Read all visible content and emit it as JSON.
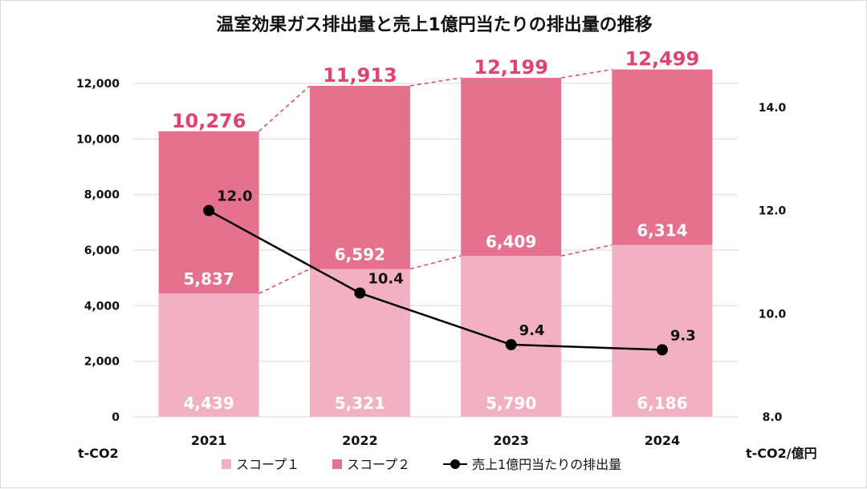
{
  "chart_data": {
    "type": "bar",
    "title": "温室効果ガス排出量と売上1億円当たりの排出量の推移",
    "categories": [
      "2021",
      "2022",
      "2023",
      "2024"
    ],
    "series": [
      {
        "name": "スコープ１",
        "values": [
          4439,
          5321,
          5790,
          6186
        ],
        "labels": [
          "4,439",
          "5,321",
          "5,790",
          "6,186"
        ],
        "color": "#f2b0c3"
      },
      {
        "name": "スコープ２",
        "values": [
          5837,
          6592,
          6409,
          6314
        ],
        "labels": [
          "5,837",
          "6,592",
          "6,409",
          "6,314"
        ],
        "color": "#e5718f"
      }
    ],
    "totals": {
      "values": [
        10276,
        11913,
        12199,
        12499
      ],
      "labels": [
        "10,276",
        "11,913",
        "12,199",
        "12,499"
      ],
      "color": "#e0436f"
    },
    "line_series": {
      "name": "売上1億円当たりの排出量",
      "values": [
        12.0,
        10.4,
        9.4,
        9.3
      ],
      "labels": [
        "12.0",
        "10.4",
        "9.4",
        "9.3"
      ],
      "color": "#000000",
      "axis": "right"
    },
    "ylabel": "t-CO2",
    "y2label": "t-CO2/億円",
    "ylim": [
      0,
      12000
    ],
    "y2lim": [
      8.0,
      14.0
    ],
    "y_ticks": [
      "0",
      "2,000",
      "4,000",
      "6,000",
      "8,000",
      "10,000",
      "12,000"
    ],
    "y2_ticks": [
      "8.0",
      "10.0",
      "12.0",
      "14.0"
    ],
    "grid": true,
    "legend_position": "bottom"
  }
}
